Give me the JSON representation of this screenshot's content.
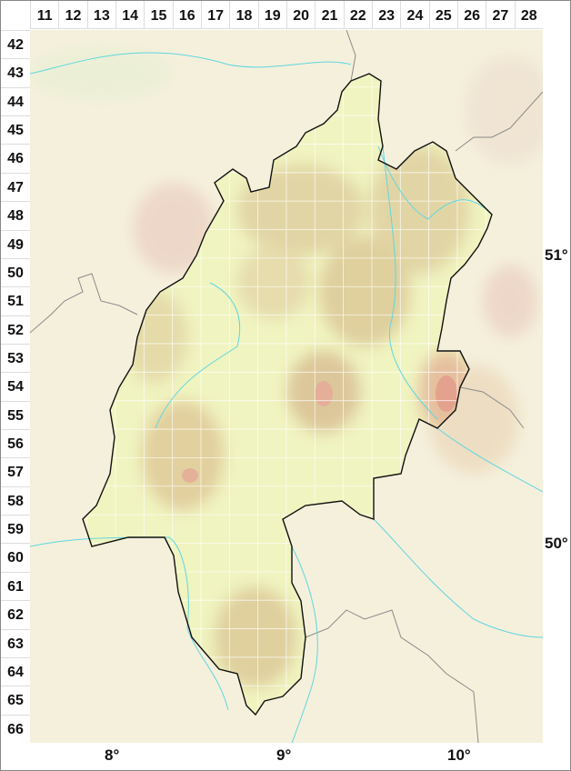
{
  "columns": [
    "11",
    "12",
    "13",
    "14",
    "15",
    "16",
    "17",
    "18",
    "19",
    "20",
    "21",
    "22",
    "23",
    "24",
    "25",
    "26",
    "27",
    "28"
  ],
  "rows": [
    "42",
    "43",
    "44",
    "45",
    "46",
    "47",
    "48",
    "49",
    "50",
    "51",
    "52",
    "53",
    "54",
    "55",
    "56",
    "57",
    "58",
    "59",
    "60",
    "61",
    "62",
    "63",
    "64",
    "65",
    "66"
  ],
  "longitude_labels": [
    "8°",
    "9°",
    "10°"
  ],
  "latitude_labels": [
    "51°",
    "50°"
  ],
  "colors": {
    "background": "#f5f0dc",
    "region_fill": "#f0f4c0",
    "border": "#111111",
    "rivers": "#5fd6e0",
    "state_borders": "#888888",
    "highlands": "#c9a77a"
  }
}
